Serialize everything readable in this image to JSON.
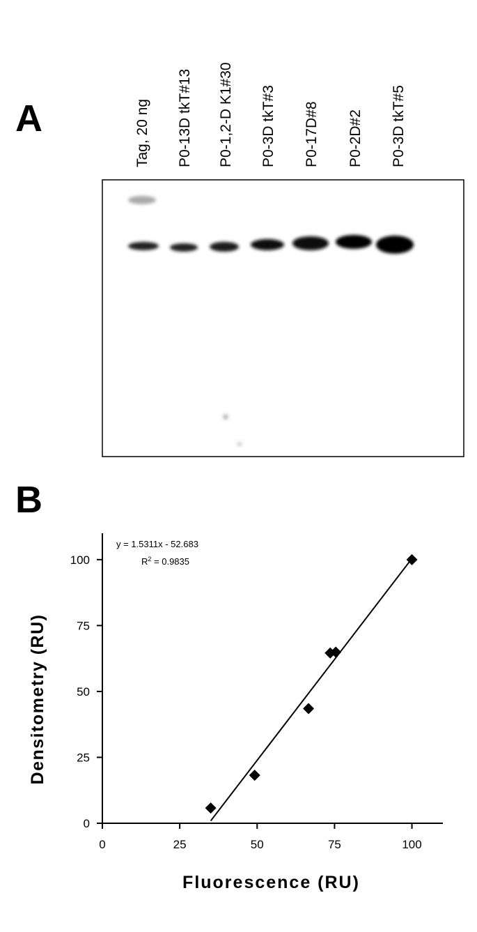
{
  "panel_a": {
    "label": "A",
    "lanes": [
      "Tag, 20 ng",
      "P0-13D tkT#13",
      "P0-1,2-D K1#30",
      "P0-3D tkT#3",
      "P0-17D#8",
      "P0-2D#2",
      "P0-3D tkT#5"
    ]
  },
  "chart_data": {
    "type": "scatter",
    "panel_label": "B",
    "x_label": "Fluorescence (RU)",
    "y_label": "Densitometry (RU)",
    "x": [
      35,
      49.2,
      66.6,
      73.6,
      75.4,
      100
    ],
    "series": [
      {
        "color": "#000000",
        "values": [
          5.8,
          18.2,
          43.5,
          64.6,
          64.9,
          100
        ]
      }
    ],
    "xlim": [
      0,
      110
    ],
    "ylim": [
      0,
      110
    ],
    "xticks": [
      0,
      25,
      50,
      75,
      100
    ],
    "yticks": [
      0,
      25,
      50,
      75,
      100
    ],
    "fit": {
      "equation": "y = 1.5311x - 52.683",
      "r2_prefix": "R",
      "r2_power": "2",
      "r2_suffix": " = 0.9835",
      "slope": 1.5311,
      "intercept": -52.683
    }
  }
}
